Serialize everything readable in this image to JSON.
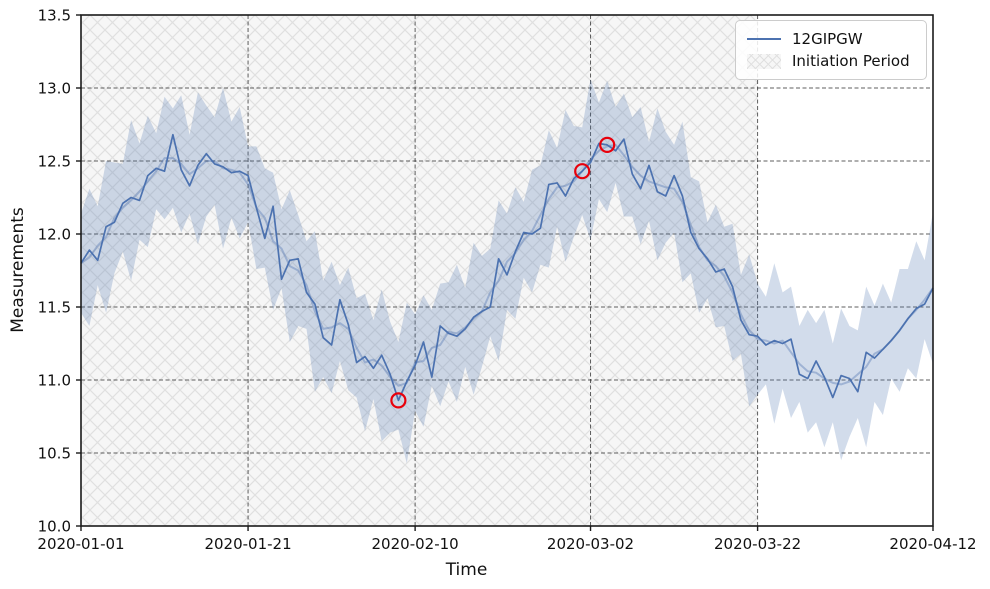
{
  "chart_data": {
    "type": "line",
    "title": "",
    "xlabel": "Time",
    "ylabel": "Measurements",
    "x_start_date": "2020-01-01",
    "x_end_date": "2020-04-12",
    "x_frequency": "daily",
    "xlim_days": [
      0,
      102
    ],
    "ylim": [
      10.0,
      13.5
    ],
    "grid": "dashed",
    "x_tick_labels": [
      "2020-01-01",
      "2020-01-21",
      "2020-02-10",
      "2020-03-02",
      "2020-03-22",
      "2020-04-12"
    ],
    "x_tick_days": [
      0,
      20,
      40,
      61,
      81,
      102
    ],
    "y_ticks": [
      10.0,
      10.5,
      11.0,
      11.5,
      12.0,
      12.5,
      13.0,
      13.5
    ],
    "y_tick_labels": [
      "10.0",
      "10.5",
      "11.0",
      "11.5",
      "12.0",
      "12.5",
      "13.0",
      "13.5"
    ],
    "legend": {
      "position": "upper right",
      "entries": [
        {
          "label": "12GIPGW",
          "type": "line"
        },
        {
          "label": "Initiation Period",
          "type": "hatched-patch"
        }
      ]
    },
    "series": [
      {
        "name": "12GIPGW",
        "type": "line",
        "color": "#4c72b0",
        "values": [
          11.8,
          11.89,
          11.82,
          12.05,
          12.08,
          12.21,
          12.25,
          12.23,
          12.4,
          12.45,
          12.43,
          12.68,
          12.44,
          12.33,
          12.47,
          12.55,
          12.48,
          12.46,
          12.42,
          12.43,
          12.4,
          12.18,
          11.97,
          12.19,
          11.69,
          11.82,
          11.83,
          11.6,
          11.52,
          11.29,
          11.24,
          11.55,
          11.38,
          11.12,
          11.16,
          11.08,
          11.17,
          11.04,
          10.86,
          10.99,
          11.1,
          11.26,
          11.02,
          11.37,
          11.32,
          11.3,
          11.35,
          11.43,
          11.47,
          11.5,
          11.83,
          11.72,
          11.88,
          12.01,
          12.0,
          12.04,
          12.34,
          12.35,
          12.26,
          12.38,
          12.43,
          12.49,
          12.62,
          12.61,
          12.57,
          12.65,
          12.41,
          12.31,
          12.47,
          12.29,
          12.26,
          12.4,
          12.26,
          12.01,
          11.9,
          11.83,
          11.74,
          11.76,
          11.64,
          11.41,
          11.31,
          11.3,
          11.24,
          11.27,
          11.25,
          11.28,
          11.04,
          11.01,
          11.13,
          11.02,
          10.88,
          11.03,
          11.01,
          10.92,
          11.19,
          11.15,
          11.21,
          11.27,
          11.34,
          11.42,
          11.49,
          11.52,
          11.63
        ]
      },
      {
        "name": "band-center-light-line",
        "type": "line",
        "color": "#4c72b0",
        "opacity": 0.38,
        "values": [
          11.8,
          11.84,
          11.92,
          11.98,
          12.11,
          12.18,
          12.23,
          12.29,
          12.36,
          12.43,
          12.52,
          12.52,
          12.48,
          12.41,
          12.45,
          12.5,
          12.5,
          12.45,
          12.44,
          12.42,
          12.34,
          12.18,
          12.11,
          11.95,
          11.9,
          11.78,
          11.75,
          11.65,
          11.47,
          11.35,
          11.36,
          11.39,
          11.35,
          11.22,
          11.12,
          11.14,
          11.1,
          11.02,
          10.96,
          10.98,
          11.12,
          11.13,
          11.22,
          11.24,
          11.33,
          11.32,
          11.36,
          11.42,
          11.47,
          11.6,
          11.68,
          11.81,
          11.87,
          11.96,
          12.02,
          12.13,
          12.24,
          12.32,
          12.33,
          12.36,
          12.43,
          12.51,
          12.57,
          12.6,
          12.61,
          12.54,
          12.46,
          12.4,
          12.36,
          12.34,
          12.32,
          12.31,
          12.22,
          12.06,
          11.91,
          11.82,
          11.78,
          11.71,
          11.6,
          11.45,
          11.34,
          11.28,
          11.27,
          11.25,
          11.27,
          11.19,
          11.11,
          11.06,
          11.05,
          11.01,
          10.98,
          10.97,
          10.99,
          11.04,
          11.09,
          11.18,
          11.21,
          11.27,
          11.34,
          11.42,
          11.48,
          11.55,
          11.63
        ]
      }
    ],
    "band": {
      "around": "band-center-light-line",
      "halfwidth_cycle": [
        0.34,
        0.47,
        0.27,
        0.52,
        0.38,
        0.3,
        0.55,
        0.33,
        0.45,
        0.26,
        0.42
      ],
      "color": "#4c72b0",
      "opacity": 0.25
    },
    "initiation_period": {
      "start_date": "2020-01-01",
      "end_date": "2020-03-22",
      "start_day": 0,
      "end_day": 81
    },
    "anomalies": [
      {
        "date": "2020-02-08",
        "day": 38,
        "value": 10.86
      },
      {
        "date": "2020-03-01",
        "day": 60,
        "value": 12.43
      },
      {
        "date": "2020-03-04",
        "day": 63,
        "value": 12.61
      }
    ],
    "colors": {
      "line": "#4c72b0",
      "band_fill": "#4c72b0",
      "anomaly_marker": "#e8000b",
      "hatch_base": "#f6f6f6",
      "hatch_line": "#e0e0e0",
      "grid": "#2a2a2a",
      "spine": "#1a1a1a",
      "text": "#111111"
    }
  }
}
